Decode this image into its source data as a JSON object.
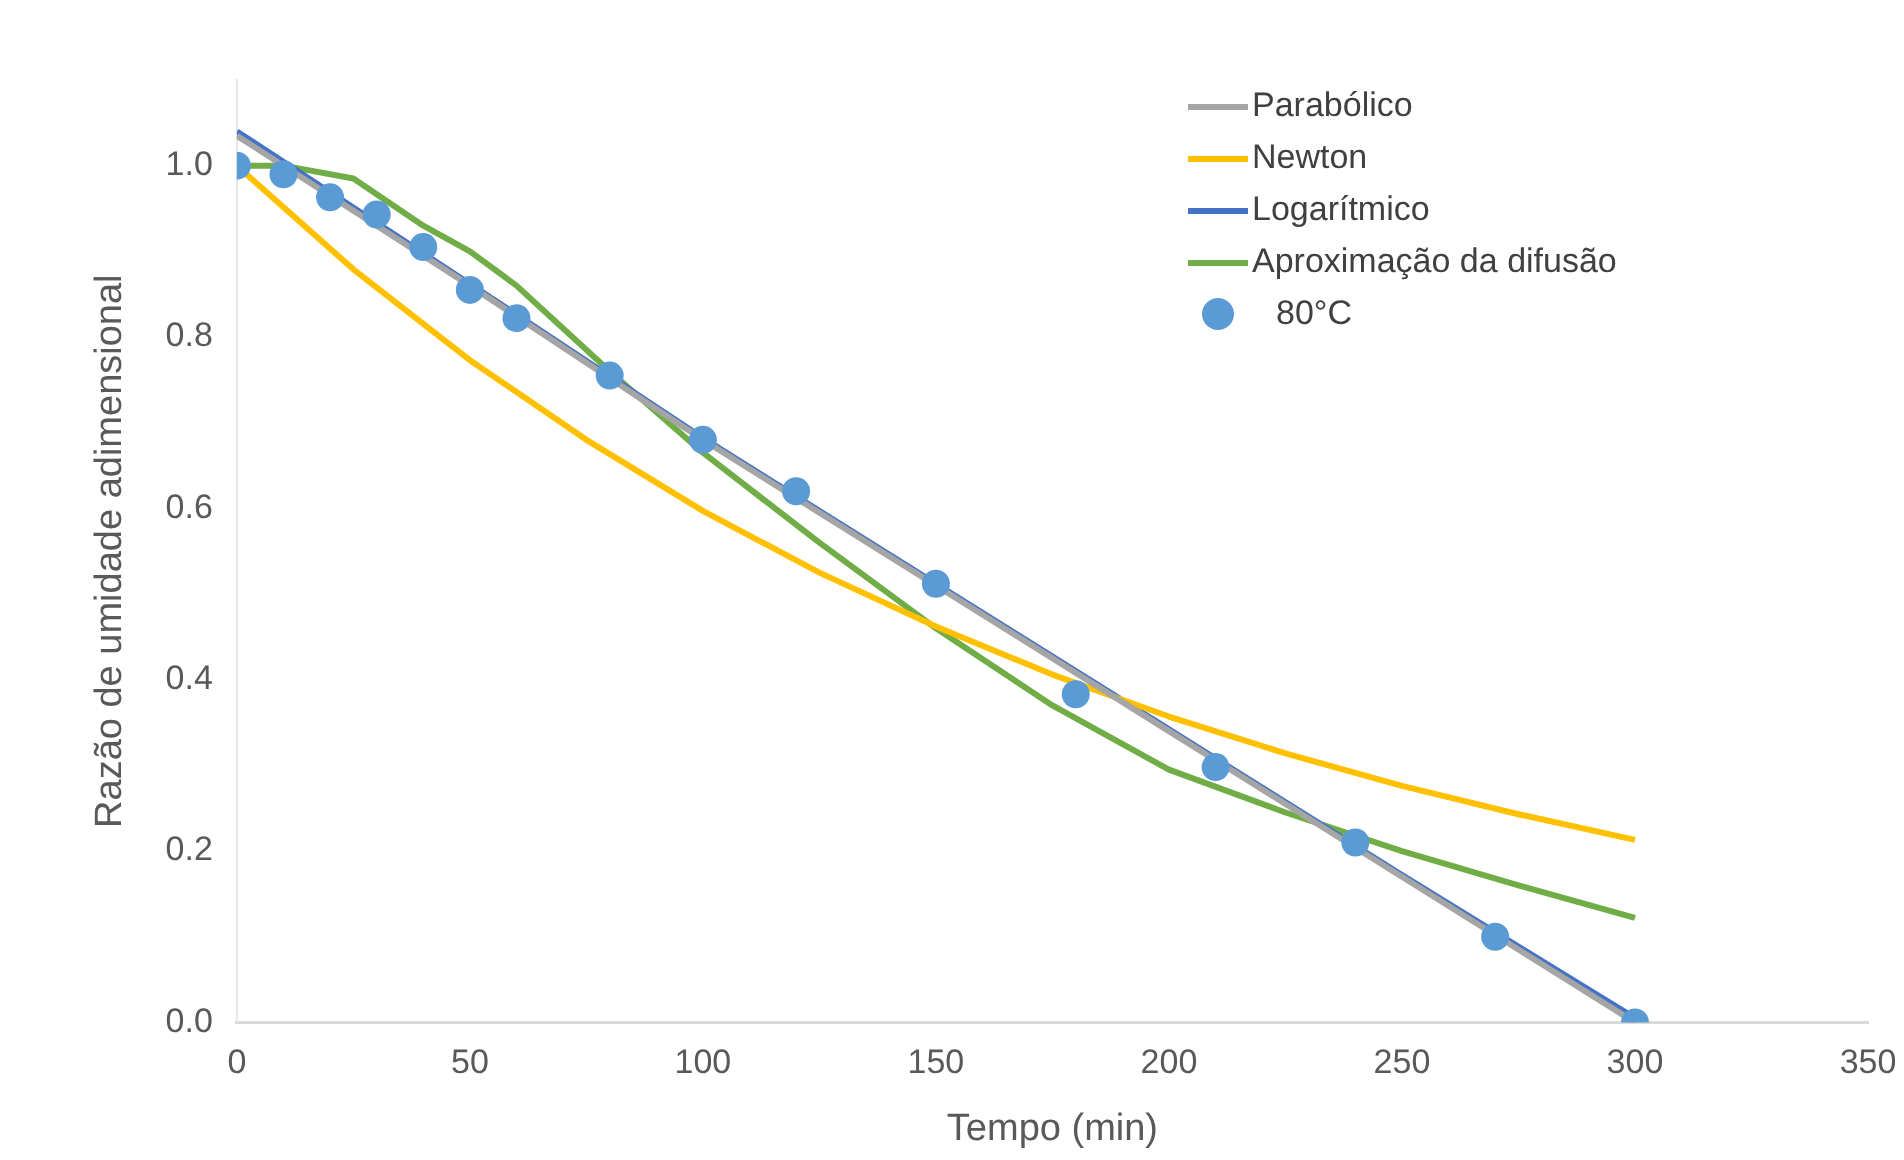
{
  "chart_data": {
    "type": "line",
    "xlabel": "Tempo (min)",
    "ylabel": "Razão de umidade adimensional",
    "xlim": [
      0,
      350
    ],
    "xticks": [
      0,
      50,
      100,
      150,
      200,
      250,
      300,
      350
    ],
    "ylim": [
      0,
      1.1
    ],
    "yticks": [
      {
        "value": 0,
        "label": "0.0"
      },
      {
        "value": 0.2,
        "label": "0.2"
      },
      {
        "value": 0.4,
        "label": "0.4"
      },
      {
        "value": 0.6,
        "label": "0.6"
      },
      {
        "value": 0.8,
        "label": "0.8"
      },
      {
        "value": 1,
        "label": "1.0"
      }
    ],
    "grid": false,
    "legend": "top right",
    "marker": "none",
    "line_style": "solid",
    "series": [
      {
        "name": "Parabólico",
        "color": "#a5a5a5",
        "x": [
          0,
          50,
          100,
          150,
          200,
          250,
          300
        ],
        "values": [
          1.035,
          0.86,
          0.68,
          0.51,
          0.34,
          0.17,
          0.0
        ]
      },
      {
        "name": "Newton",
        "color": "#ffc000",
        "x": [
          0,
          25,
          50,
          75,
          100,
          125,
          150,
          175,
          200,
          225,
          250,
          275,
          300
        ],
        "values": [
          1.0,
          0.879,
          0.773,
          0.68,
          0.597,
          0.525,
          0.462,
          0.406,
          0.357,
          0.314,
          0.276,
          0.243,
          0.213
        ]
      },
      {
        "name": "Logarítmico",
        "color": "#4472c4",
        "x": [
          0,
          50,
          100,
          150,
          200,
          250,
          300
        ],
        "values": [
          1.04,
          0.862,
          0.682,
          0.512,
          0.342,
          0.172,
          0.005
        ]
      },
      {
        "name": "Aproximação da difusão",
        "color": "#70ad47",
        "x": [
          0,
          10,
          25,
          40,
          50,
          60,
          80,
          100,
          125,
          150,
          175,
          200,
          225,
          250,
          275,
          300
        ],
        "values": [
          1.0,
          1.0,
          0.985,
          0.93,
          0.9,
          0.86,
          0.76,
          0.665,
          0.56,
          0.46,
          0.37,
          0.295,
          0.245,
          0.2,
          0.16,
          0.122
        ]
      },
      {
        "name": "80°C",
        "type": "scatter",
        "marker": "circle",
        "color": "#5b9bd5",
        "x": [
          0,
          10,
          20,
          30,
          40,
          50,
          60,
          80,
          100,
          120,
          150,
          180,
          210,
          240,
          270,
          300
        ],
        "values": [
          1.0,
          0.99,
          0.963,
          0.943,
          0.905,
          0.855,
          0.822,
          0.755,
          0.68,
          0.62,
          0.512,
          0.383,
          0.298,
          0.21,
          0.1,
          0.0
        ]
      }
    ]
  }
}
